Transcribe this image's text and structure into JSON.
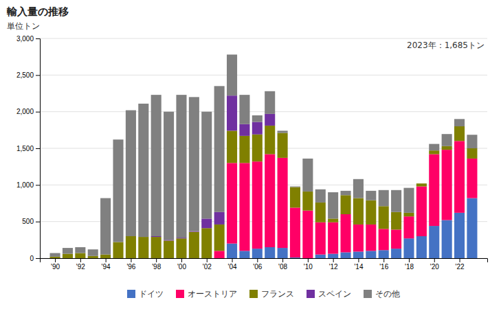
{
  "chart_data": {
    "type": "bar",
    "stacked": true,
    "title": "輸入量の推移",
    "ylabel": "単位トン",
    "annotation": "2023年：1,685トン",
    "grid": true,
    "legend": "bottom",
    "x": [
      1990,
      1991,
      1992,
      1993,
      1994,
      1995,
      1996,
      1997,
      1998,
      1999,
      2000,
      2001,
      2002,
      2003,
      2004,
      2005,
      2006,
      2007,
      2008,
      2009,
      2010,
      2011,
      2012,
      2013,
      2014,
      2015,
      2016,
      2017,
      2018,
      2019,
      2020,
      2021,
      2022,
      2023
    ],
    "xlim": [
      1988.8,
      2024.2
    ],
    "xticks": [
      {
        "value": 1990,
        "label": "'90"
      },
      {
        "value": 1992,
        "label": "'92"
      },
      {
        "value": 1994,
        "label": "'94"
      },
      {
        "value": 1996,
        "label": "'96"
      },
      {
        "value": 1998,
        "label": "'98"
      },
      {
        "value": 2000,
        "label": "'00"
      },
      {
        "value": 2002,
        "label": "'02"
      },
      {
        "value": 2004,
        "label": "'04"
      },
      {
        "value": 2006,
        "label": "'06"
      },
      {
        "value": 2008,
        "label": "'08"
      },
      {
        "value": 2010,
        "label": "'10"
      },
      {
        "value": 2012,
        "label": "'12"
      },
      {
        "value": 2014,
        "label": "'14"
      },
      {
        "value": 2016,
        "label": "'16"
      },
      {
        "value": 2018,
        "label": "'18"
      },
      {
        "value": 2020,
        "label": "'20"
      },
      {
        "value": 2022,
        "label": "'22"
      }
    ],
    "ylim": [
      0,
      3000
    ],
    "yticks": [
      0,
      500,
      {
        "value": 1000,
        "label": "1,000"
      },
      {
        "value": 1500,
        "label": "1,500"
      },
      {
        "value": 2000,
        "label": "2,000"
      },
      {
        "value": 2500,
        "label": "2,500"
      },
      {
        "value": 3000,
        "label": "3,000"
      }
    ],
    "series": [
      {
        "name": "ドイツ",
        "color": "#4472C4",
        "values": [
          0,
          0,
          0,
          0,
          0,
          0,
          0,
          0,
          0,
          0,
          0,
          0,
          0,
          0,
          200,
          100,
          130,
          150,
          140,
          10,
          0,
          50,
          60,
          80,
          90,
          100,
          110,
          130,
          270,
          300,
          440,
          520,
          620,
          820
        ]
      },
      {
        "name": "オーストリア",
        "color": "#FF0066",
        "values": [
          0,
          0,
          0,
          0,
          0,
          0,
          0,
          0,
          0,
          0,
          0,
          0,
          0,
          100,
          1100,
          1200,
          1190,
          1270,
          1230,
          680,
          650,
          440,
          430,
          520,
          370,
          360,
          290,
          260,
          300,
          680,
          980,
          960,
          980,
          540
        ]
      },
      {
        "name": "フランス",
        "color": "#808000",
        "values": [
          20,
          60,
          70,
          30,
          50,
          220,
          300,
          290,
          290,
          240,
          270,
          360,
          410,
          360,
          440,
          370,
          370,
          390,
          340,
          280,
          260,
          270,
          50,
          260,
          360,
          330,
          310,
          240,
          50,
          40,
          50,
          50,
          200,
          140
        ]
      },
      {
        "name": "スペイン",
        "color": "#7030A0",
        "values": [
          0,
          0,
          0,
          0,
          0,
          0,
          0,
          0,
          10,
          10,
          10,
          10,
          130,
          170,
          480,
          160,
          170,
          160,
          0,
          0,
          0,
          0,
          0,
          0,
          0,
          0,
          0,
          0,
          0,
          0,
          0,
          0,
          0,
          0
        ]
      },
      {
        "name": "その他",
        "color": "#808080",
        "values": [
          50,
          80,
          80,
          90,
          770,
          1400,
          1720,
          1820,
          1930,
          1750,
          1950,
          1830,
          1460,
          1720,
          560,
          400,
          90,
          310,
          30,
          10,
          450,
          180,
          360,
          60,
          260,
          130,
          220,
          300,
          340,
          0,
          90,
          165,
          100,
          185
        ]
      }
    ]
  }
}
